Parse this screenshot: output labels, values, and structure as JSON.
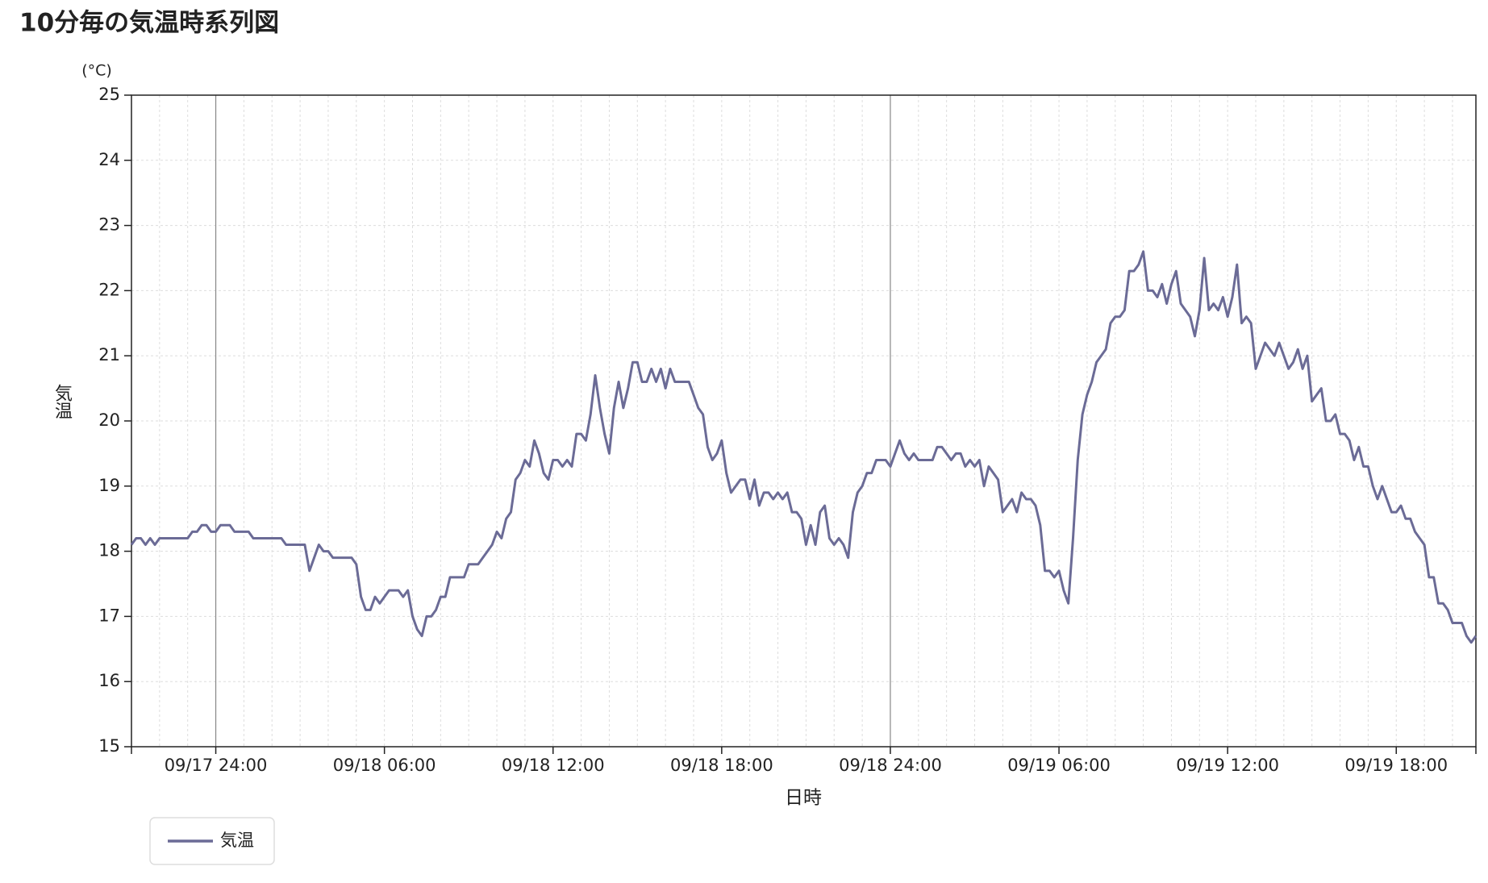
{
  "chart_data": {
    "type": "line",
    "title": "10分毎の気温時系列図",
    "unit_label": "(°C)",
    "y_label": "気温",
    "x_label": "日時",
    "x": [
      "09/17 21:00",
      "09/17 21:10",
      "09/17 21:20",
      "09/17 21:30",
      "09/17 21:40",
      "09/17 21:50",
      "09/17 22:00",
      "09/17 22:10",
      "09/17 22:20",
      "09/17 22:30",
      "09/17 22:40",
      "09/17 22:50",
      "09/17 23:00",
      "09/17 23:10",
      "09/17 23:20",
      "09/17 23:30",
      "09/17 23:40",
      "09/17 23:50",
      "09/18 00:00",
      "09/18 00:10",
      "09/18 00:20",
      "09/18 00:30",
      "09/18 00:40",
      "09/18 00:50",
      "09/18 01:00",
      "09/18 01:10",
      "09/18 01:20",
      "09/18 01:30",
      "09/18 01:40",
      "09/18 01:50",
      "09/18 02:00",
      "09/18 02:10",
      "09/18 02:20",
      "09/18 02:30",
      "09/18 02:40",
      "09/18 02:50",
      "09/18 03:00",
      "09/18 03:10",
      "09/18 03:20",
      "09/18 03:30",
      "09/18 03:40",
      "09/18 03:50",
      "09/18 04:00",
      "09/18 04:10",
      "09/18 04:20",
      "09/18 04:30",
      "09/18 04:40",
      "09/18 04:50",
      "09/18 05:00",
      "09/18 05:10",
      "09/18 05:20",
      "09/18 05:30",
      "09/18 05:40",
      "09/18 05:50",
      "09/18 06:00",
      "09/18 06:10",
      "09/18 06:20",
      "09/18 06:30",
      "09/18 06:40",
      "09/18 06:50",
      "09/18 07:00",
      "09/18 07:10",
      "09/18 07:20",
      "09/18 07:30",
      "09/18 07:40",
      "09/18 07:50",
      "09/18 08:00",
      "09/18 08:10",
      "09/18 08:20",
      "09/18 08:30",
      "09/18 08:40",
      "09/18 08:50",
      "09/18 09:00",
      "09/18 09:10",
      "09/18 09:20",
      "09/18 09:30",
      "09/18 09:40",
      "09/18 09:50",
      "09/18 10:00",
      "09/18 10:10",
      "09/18 10:20",
      "09/18 10:30",
      "09/18 10:40",
      "09/18 10:50",
      "09/18 11:00",
      "09/18 11:10",
      "09/18 11:20",
      "09/18 11:30",
      "09/18 11:40",
      "09/18 11:50",
      "09/18 12:00",
      "09/18 12:10",
      "09/18 12:20",
      "09/18 12:30",
      "09/18 12:40",
      "09/18 12:50",
      "09/18 13:00",
      "09/18 13:10",
      "09/18 13:20",
      "09/18 13:30",
      "09/18 13:40",
      "09/18 13:50",
      "09/18 14:00",
      "09/18 14:10",
      "09/18 14:20",
      "09/18 14:30",
      "09/18 14:40",
      "09/18 14:50",
      "09/18 15:00",
      "09/18 15:10",
      "09/18 15:20",
      "09/18 15:30",
      "09/18 15:40",
      "09/18 15:50",
      "09/18 16:00",
      "09/18 16:10",
      "09/18 16:20",
      "09/18 16:30",
      "09/18 16:40",
      "09/18 16:50",
      "09/18 17:00",
      "09/18 17:10",
      "09/18 17:20",
      "09/18 17:30",
      "09/18 17:40",
      "09/18 17:50",
      "09/18 18:00",
      "09/18 18:10",
      "09/18 18:20",
      "09/18 18:30",
      "09/18 18:40",
      "09/18 18:50",
      "09/18 19:00",
      "09/18 19:10",
      "09/18 19:20",
      "09/18 19:30",
      "09/18 19:40",
      "09/18 19:50",
      "09/18 20:00",
      "09/18 20:10",
      "09/18 20:20",
      "09/18 20:30",
      "09/18 20:40",
      "09/18 20:50",
      "09/18 21:00",
      "09/18 21:10",
      "09/18 21:20",
      "09/18 21:30",
      "09/18 21:40",
      "09/18 21:50",
      "09/18 22:00",
      "09/18 22:10",
      "09/18 22:20",
      "09/18 22:30",
      "09/18 22:40",
      "09/18 22:50",
      "09/18 23:00",
      "09/18 23:10",
      "09/18 23:20",
      "09/18 23:30",
      "09/18 23:40",
      "09/18 23:50",
      "09/19 00:00",
      "09/19 00:10",
      "09/19 00:20",
      "09/19 00:30",
      "09/19 00:40",
      "09/19 00:50",
      "09/19 01:00",
      "09/19 01:10",
      "09/19 01:20",
      "09/19 01:30",
      "09/19 01:40",
      "09/19 01:50",
      "09/19 02:00",
      "09/19 02:10",
      "09/19 02:20",
      "09/19 02:30",
      "09/19 02:40",
      "09/19 02:50",
      "09/19 03:00",
      "09/19 03:10",
      "09/19 03:20",
      "09/19 03:30",
      "09/19 03:40",
      "09/19 03:50",
      "09/19 04:00",
      "09/19 04:10",
      "09/19 04:20",
      "09/19 04:30",
      "09/19 04:40",
      "09/19 04:50",
      "09/19 05:00",
      "09/19 05:10",
      "09/19 05:20",
      "09/19 05:30",
      "09/19 05:40",
      "09/19 05:50",
      "09/19 06:00",
      "09/19 06:10",
      "09/19 06:20",
      "09/19 06:30",
      "09/19 06:40",
      "09/19 06:50",
      "09/19 07:00",
      "09/19 07:10",
      "09/19 07:20",
      "09/19 07:30",
      "09/19 07:40",
      "09/19 07:50",
      "09/19 08:00",
      "09/19 08:10",
      "09/19 08:20",
      "09/19 08:30",
      "09/19 08:40",
      "09/19 08:50",
      "09/19 09:00",
      "09/19 09:10",
      "09/19 09:20",
      "09/19 09:30",
      "09/19 09:40",
      "09/19 09:50",
      "09/19 10:00",
      "09/19 10:10",
      "09/19 10:20",
      "09/19 10:30",
      "09/19 10:40",
      "09/19 10:50",
      "09/19 11:00",
      "09/19 11:10",
      "09/19 11:20",
      "09/19 11:30",
      "09/19 11:40",
      "09/19 11:50",
      "09/19 12:00",
      "09/19 12:10",
      "09/19 12:20",
      "09/19 12:30",
      "09/19 12:40",
      "09/19 12:50",
      "09/19 13:00",
      "09/19 13:10",
      "09/19 13:20",
      "09/19 13:30",
      "09/19 13:40",
      "09/19 13:50",
      "09/19 14:00",
      "09/19 14:10",
      "09/19 14:20",
      "09/19 14:30",
      "09/19 14:40",
      "09/19 14:50",
      "09/19 15:00",
      "09/19 15:10",
      "09/19 15:20",
      "09/19 15:30",
      "09/19 15:40",
      "09/19 15:50",
      "09/19 16:00",
      "09/19 16:10",
      "09/19 16:20",
      "09/19 16:30",
      "09/19 16:40",
      "09/19 16:50",
      "09/19 17:00",
      "09/19 17:10",
      "09/19 17:20",
      "09/19 17:30",
      "09/19 17:40",
      "09/19 17:50",
      "09/19 18:00",
      "09/19 18:10",
      "09/19 18:20",
      "09/19 18:30",
      "09/19 18:40",
      "09/19 18:50",
      "09/19 19:00",
      "09/19 19:10",
      "09/19 19:20",
      "09/19 19:30",
      "09/19 19:40",
      "09/19 19:50",
      "09/19 20:00",
      "09/19 20:10",
      "09/19 20:20",
      "09/19 20:30",
      "09/19 20:40",
      "09/19 20:50"
    ],
    "series": [
      {
        "name": "気温",
        "color": "#6b6b96",
        "values": [
          18.1,
          18.2,
          18.2,
          18.1,
          18.2,
          18.1,
          18.2,
          18.2,
          18.2,
          18.2,
          18.2,
          18.2,
          18.2,
          18.3,
          18.3,
          18.4,
          18.4,
          18.3,
          18.3,
          18.4,
          18.4,
          18.4,
          18.3,
          18.3,
          18.3,
          18.3,
          18.2,
          18.2,
          18.2,
          18.2,
          18.2,
          18.2,
          18.2,
          18.1,
          18.1,
          18.1,
          18.1,
          18.1,
          17.7,
          17.9,
          18.1,
          18.0,
          18.0,
          17.9,
          17.9,
          17.9,
          17.9,
          17.9,
          17.8,
          17.3,
          17.1,
          17.1,
          17.3,
          17.2,
          17.3,
          17.4,
          17.4,
          17.4,
          17.3,
          17.4,
          17.0,
          16.8,
          16.7,
          17.0,
          17.0,
          17.1,
          17.3,
          17.3,
          17.6,
          17.6,
          17.6,
          17.6,
          17.8,
          17.8,
          17.8,
          17.9,
          18.0,
          18.1,
          18.3,
          18.2,
          18.5,
          18.6,
          19.1,
          19.2,
          19.4,
          19.3,
          19.7,
          19.5,
          19.2,
          19.1,
          19.4,
          19.4,
          19.3,
          19.4,
          19.3,
          19.8,
          19.8,
          19.7,
          20.1,
          20.7,
          20.2,
          19.8,
          19.5,
          20.2,
          20.6,
          20.2,
          20.5,
          20.9,
          20.9,
          20.6,
          20.6,
          20.8,
          20.6,
          20.8,
          20.5,
          20.8,
          20.6,
          20.6,
          20.6,
          20.6,
          20.4,
          20.2,
          20.1,
          19.6,
          19.4,
          19.5,
          19.7,
          19.2,
          18.9,
          19.0,
          19.1,
          19.1,
          18.8,
          19.1,
          18.7,
          18.9,
          18.9,
          18.8,
          18.9,
          18.8,
          18.9,
          18.6,
          18.6,
          18.5,
          18.1,
          18.4,
          18.1,
          18.6,
          18.7,
          18.2,
          18.1,
          18.2,
          18.1,
          17.9,
          18.6,
          18.9,
          19.0,
          19.2,
          19.2,
          19.4,
          19.4,
          19.4,
          19.3,
          19.5,
          19.7,
          19.5,
          19.4,
          19.5,
          19.4,
          19.4,
          19.4,
          19.4,
          19.6,
          19.6,
          19.5,
          19.4,
          19.5,
          19.5,
          19.3,
          19.4,
          19.3,
          19.4,
          19.0,
          19.3,
          19.2,
          19.1,
          18.6,
          18.7,
          18.8,
          18.6,
          18.9,
          18.8,
          18.8,
          18.7,
          18.4,
          17.7,
          17.7,
          17.6,
          17.7,
          17.4,
          17.2,
          18.2,
          19.4,
          20.1,
          20.4,
          20.6,
          20.9,
          21.0,
          21.1,
          21.5,
          21.6,
          21.6,
          21.7,
          22.3,
          22.3,
          22.4,
          22.6,
          22.0,
          22.0,
          21.9,
          22.1,
          21.8,
          22.1,
          22.3,
          21.8,
          21.7,
          21.6,
          21.3,
          21.7,
          22.5,
          21.7,
          21.8,
          21.7,
          21.9,
          21.6,
          21.9,
          22.4,
          21.5,
          21.6,
          21.5,
          20.8,
          21.0,
          21.2,
          21.1,
          21.0,
          21.2,
          21.0,
          20.8,
          20.9,
          21.1,
          20.8,
          21.0,
          20.3,
          20.4,
          20.5,
          20.0,
          20.0,
          20.1,
          19.8,
          19.8,
          19.7,
          19.4,
          19.6,
          19.3,
          19.3,
          19.0,
          18.8,
          19.0,
          18.8,
          18.6,
          18.6,
          18.7,
          18.5,
          18.5,
          18.3,
          18.2,
          18.1,
          17.6,
          17.6,
          17.2,
          17.2,
          17.1,
          16.9,
          16.9,
          16.9,
          16.7,
          16.6,
          16.7
        ]
      }
    ],
    "xlim": [
      "09/17 21:00",
      "09/19 20:50"
    ],
    "xticks": [
      "09/17 24:00",
      "09/18 06:00",
      "09/18 12:00",
      "09/18 18:00",
      "09/18 24:00",
      "09/19 06:00",
      "09/19 12:00",
      "09/19 18:00"
    ],
    "minor_grid_minutes": 60,
    "ylim": [
      15,
      25
    ],
    "yticks": [
      15,
      16,
      17,
      18,
      19,
      20,
      21,
      22,
      23,
      24,
      25
    ],
    "grid": true,
    "legend": "bottom-left"
  }
}
